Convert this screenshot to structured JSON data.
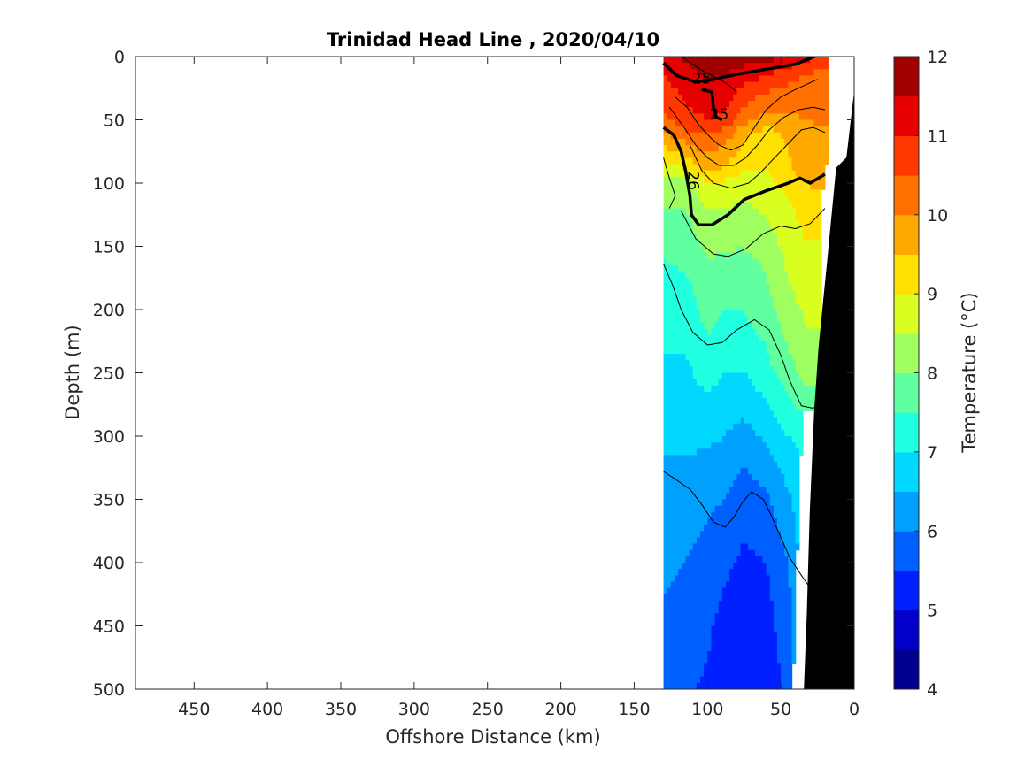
{
  "chart_data": {
    "type": "heatmap",
    "title": "Trinidad Head Line , 2020/04/10",
    "xlabel": "Offshore Distance (km)",
    "ylabel": "Depth (m)",
    "xlim": [
      490,
      0
    ],
    "ylim": [
      0,
      500
    ],
    "x_direction": "reversed",
    "y_direction": "depth-down",
    "xticks": [
      450,
      400,
      350,
      300,
      250,
      200,
      150,
      100,
      50,
      0
    ],
    "yticks": [
      0,
      50,
      100,
      150,
      200,
      250,
      300,
      350,
      400,
      450,
      500
    ],
    "colorbar": {
      "label": "Temperature (°C)",
      "ticks": [
        4,
        5,
        6,
        7,
        8,
        9,
        10,
        11,
        12
      ],
      "range": [
        4,
        12
      ],
      "levels": 16,
      "colors": [
        "#00008f",
        "#0000c8",
        "#0020ff",
        "#0060ff",
        "#00a0ff",
        "#00d8ff",
        "#20ffdf",
        "#60ffa0",
        "#a0ff60",
        "#d8ff20",
        "#ffe000",
        "#ffa800",
        "#ff7000",
        "#ff3800",
        "#e60000",
        "#a00000"
      ]
    },
    "data_extent_km": [
      130,
      20
    ],
    "grid": false,
    "depth_levels_m": [
      0,
      10,
      20,
      30,
      40,
      50,
      60,
      70,
      80,
      90,
      100,
      110,
      120,
      130,
      140,
      150,
      160,
      170,
      180,
      190,
      200,
      210,
      220,
      230,
      240,
      250,
      260,
      270,
      280,
      290,
      300,
      310,
      320,
      330,
      340,
      350,
      360,
      370,
      380,
      390,
      400,
      410,
      420,
      430,
      440,
      450,
      460,
      470,
      480,
      490,
      500
    ],
    "temperature_profiles": [
      {
        "distance_km": 130,
        "depth_m": [
          0,
          10,
          25,
          50,
          60,
          90,
          100,
          120,
          160,
          200,
          250,
          300,
          350,
          400,
          450,
          500
        ],
        "temp_c": [
          11.2,
          11.0,
          10.8,
          10.4,
          10.0,
          8.7,
          8.1,
          8.0,
          7.5,
          7.2,
          6.9,
          6.6,
          6.3,
          6.1,
          5.9,
          5.8
        ]
      },
      {
        "distance_km": 115,
        "depth_m": [
          0,
          10,
          25,
          50,
          60,
          90,
          100,
          120,
          160,
          200,
          250,
          300,
          350,
          400,
          450,
          500
        ],
        "temp_c": [
          11.6,
          11.4,
          11.2,
          10.8,
          10.4,
          8.9,
          8.3,
          8.0,
          7.6,
          7.2,
          6.9,
          6.6,
          6.3,
          6.0,
          5.8,
          5.6
        ]
      },
      {
        "distance_km": 100,
        "depth_m": [
          0,
          10,
          25,
          50,
          60,
          90,
          100,
          120,
          160,
          200,
          250,
          300,
          350,
          400,
          450,
          500
        ],
        "temp_c": [
          11.8,
          11.7,
          11.4,
          11.0,
          10.6,
          9.6,
          9.0,
          8.5,
          8.0,
          7.7,
          7.2,
          6.6,
          6.1,
          5.8,
          5.6,
          5.4
        ]
      },
      {
        "distance_km": 88,
        "depth_m": [
          0,
          10,
          25,
          50,
          60,
          90,
          100,
          120,
          160,
          200,
          250,
          300,
          350,
          400,
          450,
          500
        ],
        "temp_c": [
          11.9,
          11.6,
          11.3,
          10.9,
          10.3,
          9.4,
          8.9,
          8.5,
          7.9,
          7.5,
          7.0,
          6.5,
          6.0,
          5.6,
          5.3,
          5.2
        ]
      },
      {
        "distance_km": 75,
        "depth_m": [
          0,
          10,
          25,
          50,
          60,
          90,
          100,
          120,
          160,
          200,
          250,
          300,
          350,
          400,
          450,
          500
        ],
        "temp_c": [
          11.8,
          11.4,
          10.9,
          10.2,
          9.6,
          9.0,
          8.7,
          8.4,
          7.9,
          7.5,
          7.0,
          6.3,
          5.7,
          5.4,
          5.2,
          5.0
        ]
      },
      {
        "distance_km": 60,
        "depth_m": [
          0,
          10,
          25,
          50,
          60,
          90,
          100,
          120,
          160,
          200,
          250,
          300,
          350,
          400,
          450,
          500
        ],
        "temp_c": [
          11.7,
          11.2,
          10.6,
          9.8,
          9.3,
          9.0,
          8.8,
          8.6,
          8.1,
          7.8,
          7.3,
          6.6,
          5.9,
          5.5,
          5.3,
          5.1
        ]
      },
      {
        "distance_km": 45,
        "depth_m": [
          0,
          10,
          25,
          50,
          60,
          90,
          100,
          120,
          160,
          200,
          250,
          300,
          350,
          400,
          450,
          500
        ],
        "temp_c": [
          11.5,
          10.9,
          10.4,
          9.9,
          9.6,
          9.4,
          9.2,
          8.9,
          8.6,
          8.3,
          7.8,
          7.0,
          6.4,
          6.0,
          5.8,
          5.7
        ]
      },
      {
        "distance_km": 33,
        "depth_m": [
          0,
          10,
          25,
          50,
          60,
          90,
          100,
          120,
          160,
          200,
          250,
          300,
          350,
          400,
          450,
          500
        ],
        "temp_c": [
          11.2,
          10.6,
          10.2,
          10.0,
          9.7,
          9.7,
          9.5,
          9.2,
          8.9,
          8.6,
          8.2,
          7.2,
          6.9,
          6.8,
          6.7,
          6.7
        ]
      },
      {
        "distance_km": 22,
        "depth_m": [
          0,
          10,
          25,
          50,
          60,
          90,
          100,
          120,
          140
        ],
        "temp_c": [
          11.0,
          10.5,
          10.3,
          10.1,
          9.9,
          9.8,
          9.6,
          9.3,
          9.1
        ]
      }
    ],
    "density_contours": [
      {
        "label": "25",
        "bold": true,
        "points": [
          [
            130,
            5
          ],
          [
            121,
            15
          ],
          [
            108,
            20
          ],
          [
            96,
            18
          ],
          [
            80,
            14
          ],
          [
            60,
            10
          ],
          [
            40,
            6
          ],
          [
            27,
            0
          ]
        ]
      },
      {
        "label": "25",
        "bold": true,
        "points": [
          [
            104,
            26
          ],
          [
            97,
            28
          ],
          [
            96,
            40
          ],
          [
            94,
            48
          ],
          [
            90,
            50
          ]
        ]
      },
      {
        "label": "26",
        "bold": true,
        "points": [
          [
            130,
            56
          ],
          [
            123,
            62
          ],
          [
            118,
            75
          ],
          [
            115,
            90
          ],
          [
            112,
            110
          ],
          [
            111,
            125
          ],
          [
            106,
            133
          ],
          [
            97,
            133
          ],
          [
            86,
            125
          ],
          [
            75,
            113
          ],
          [
            60,
            106
          ],
          [
            45,
            100
          ],
          [
            37,
            96
          ],
          [
            30,
            100
          ],
          [
            20,
            93
          ]
        ]
      },
      {
        "label": "",
        "bold": false,
        "points": [
          [
            118,
            0
          ],
          [
            105,
            10
          ],
          [
            95,
            16
          ],
          [
            86,
            22
          ],
          [
            80,
            28
          ]
        ]
      },
      {
        "label": "",
        "bold": false,
        "points": [
          [
            122,
            32
          ],
          [
            114,
            40
          ],
          [
            106,
            54
          ],
          [
            98,
            64
          ],
          [
            92,
            70
          ],
          [
            84,
            74
          ],
          [
            76,
            70
          ],
          [
            68,
            56
          ],
          [
            60,
            42
          ],
          [
            50,
            32
          ],
          [
            40,
            26
          ],
          [
            25,
            18
          ]
        ]
      },
      {
        "label": "",
        "bold": false,
        "points": [
          [
            126,
            40
          ],
          [
            116,
            56
          ],
          [
            108,
            70
          ],
          [
            100,
            80
          ],
          [
            92,
            86
          ],
          [
            82,
            86
          ],
          [
            74,
            80
          ],
          [
            66,
            70
          ],
          [
            58,
            58
          ],
          [
            48,
            48
          ],
          [
            38,
            42
          ],
          [
            28,
            40
          ],
          [
            20,
            42
          ]
        ]
      },
      {
        "label": "",
        "bold": false,
        "points": [
          [
            112,
            70
          ],
          [
            104,
            90
          ],
          [
            96,
            100
          ],
          [
            84,
            104
          ],
          [
            72,
            100
          ],
          [
            64,
            92
          ],
          [
            56,
            82
          ],
          [
            46,
            70
          ],
          [
            36,
            58
          ],
          [
            28,
            56
          ],
          [
            20,
            60
          ]
        ]
      },
      {
        "label": "",
        "bold": false,
        "points": [
          [
            130,
            80
          ],
          [
            126,
            96
          ],
          [
            122,
            110
          ],
          [
            126,
            120
          ]
        ]
      },
      {
        "label": "",
        "bold": false,
        "points": [
          [
            118,
            122
          ],
          [
            108,
            144
          ],
          [
            96,
            156
          ],
          [
            86,
            158
          ],
          [
            74,
            152
          ],
          [
            62,
            140
          ],
          [
            50,
            134
          ],
          [
            40,
            136
          ],
          [
            30,
            132
          ],
          [
            20,
            120
          ]
        ]
      },
      {
        "label": "",
        "bold": false,
        "points": [
          [
            130,
            164
          ],
          [
            124,
            180
          ],
          [
            118,
            200
          ],
          [
            110,
            218
          ],
          [
            100,
            228
          ],
          [
            90,
            226
          ],
          [
            80,
            216
          ],
          [
            68,
            208
          ],
          [
            58,
            216
          ],
          [
            50,
            236
          ],
          [
            44,
            256
          ],
          [
            36,
            276
          ],
          [
            28,
            278
          ],
          [
            20,
            272
          ]
        ]
      },
      {
        "label": "",
        "bold": false,
        "points": [
          [
            130,
            328
          ],
          [
            122,
            334
          ],
          [
            112,
            342
          ],
          [
            104,
            354
          ],
          [
            96,
            368
          ],
          [
            88,
            372
          ],
          [
            82,
            364
          ],
          [
            76,
            352
          ],
          [
            70,
            344
          ],
          [
            62,
            350
          ],
          [
            56,
            364
          ],
          [
            50,
            380
          ],
          [
            44,
            396
          ],
          [
            36,
            410
          ],
          [
            30,
            420
          ]
        ]
      }
    ],
    "bathymetry": {
      "label": "",
      "shelf_points": [
        [
          0,
          0
        ],
        [
          -1,
          20
        ],
        [
          5,
          80
        ],
        [
          12,
          88
        ],
        [
          18,
          160
        ],
        [
          24,
          230
        ],
        [
          27,
          280
        ],
        [
          30,
          360
        ],
        [
          32,
          440
        ],
        [
          34,
          500
        ]
      ]
    }
  }
}
